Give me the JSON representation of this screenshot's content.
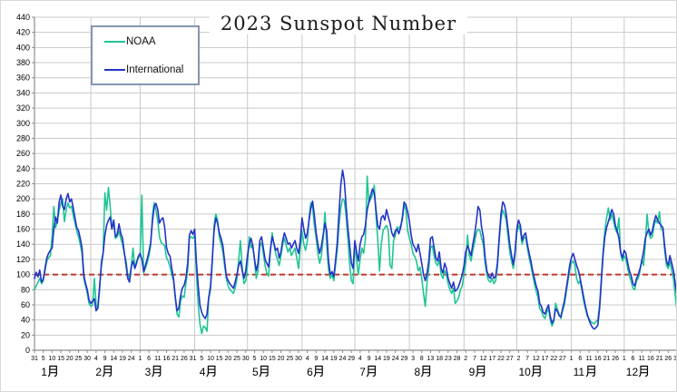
{
  "chart": {
    "title": "2023 Sunspot Number",
    "colors": {
      "noaa": "#1fc595",
      "international": "#2433c9",
      "reference": "#c0392b",
      "gridline": "#c9c9c9",
      "axis": "#8c8c8c",
      "label_text": "#000000",
      "legend_border": "#8496b0"
    }
  },
  "chart_data": {
    "type": "line",
    "title": "2023 Sunspot Number",
    "xlabel": "",
    "ylabel": "",
    "ylim": [
      0,
      440
    ],
    "y_tick_step": 20,
    "y_ticks": [
      0,
      20,
      40,
      60,
      80,
      100,
      120,
      140,
      160,
      180,
      200,
      220,
      240,
      260,
      280,
      300,
      320,
      340,
      360,
      380,
      400,
      420,
      440
    ],
    "grid": "on",
    "legend_position": "top-left box",
    "reference_line": {
      "value": 100,
      "style": "dashed",
      "color": "#c0392b"
    },
    "x_tick_step_days": 5,
    "x_tick_labels": [
      "31",
      "5",
      "10",
      "15",
      "20",
      "25",
      "30",
      "4",
      "9",
      "14",
      "19",
      "24",
      "1",
      "6",
      "11",
      "16",
      "21",
      "26",
      "31",
      "5",
      "10",
      "15",
      "20",
      "25",
      "30",
      "5",
      "10",
      "15",
      "20",
      "25",
      "30",
      "4",
      "9",
      "14",
      "19",
      "24",
      "29",
      "4",
      "9",
      "14",
      "19",
      "24",
      "29",
      "3",
      "8",
      "13",
      "18",
      "23",
      "28",
      "2",
      "7",
      "12",
      "17",
      "22",
      "27",
      "2",
      "7",
      "12",
      "17",
      "22",
      "27",
      "1",
      "6",
      "11",
      "16",
      "21",
      "26",
      "1",
      "6",
      "11",
      "16",
      "21",
      "26",
      "31"
    ],
    "month_labels": [
      "1月",
      "2月",
      "3月",
      "4月",
      "5月",
      "6月",
      "7月",
      "8月",
      "9月",
      "10月",
      "11月",
      "12月"
    ],
    "month_label_days": [
      8,
      39,
      67,
      98,
      128,
      159,
      189,
      220,
      251,
      281,
      312,
      342
    ],
    "month_gridline_days": [
      32,
      60,
      91,
      121,
      152,
      182,
      213,
      244,
      274,
      305,
      335,
      365
    ],
    "x_axis_note": "daily values, day 0 = Dec 31 through day 365 = Dec 31",
    "series": [
      {
        "name": "NOAA",
        "color": "#1fc595",
        "values": [
          80,
          85,
          90,
          95,
          88,
          92,
          105,
          118,
          122,
          125,
          150,
          190,
          162,
          172,
          185,
          195,
          200,
          170,
          185,
          195,
          188,
          190,
          178,
          168,
          158,
          150,
          140,
          128,
          95,
          85,
          75,
          62,
          58,
          60,
          95,
          60,
          55,
          80,
          118,
          128,
          208,
          185,
          215,
          190,
          162,
          168,
          148,
          150,
          158,
          148,
          140,
          128,
          118,
          100,
          95,
          112,
          135,
          108,
          118,
          122,
          125,
          205,
          102,
          108,
          115,
          125,
          138,
          178,
          195,
          185,
          172,
          150,
          142,
          140,
          138,
          122,
          118,
          110,
          100,
          92,
          68,
          48,
          44,
          65,
          72,
          70,
          88,
          105,
          148,
          150,
          148,
          152,
          100,
          62,
          35,
          22,
          32,
          30,
          25,
          68,
          80,
          115,
          165,
          180,
          172,
          150,
          140,
          130,
          112,
          95,
          85,
          80,
          78,
          75,
          82,
          95,
          120,
          145,
          110,
          88,
          92,
          112,
          150,
          135,
          140,
          118,
          95,
          105,
          138,
          142,
          128,
          112,
          102,
          98,
          130,
          155,
          140,
          128,
          120,
          112,
          125,
          140,
          148,
          138,
          130,
          135,
          125,
          130,
          135,
          122,
          108,
          135,
          158,
          140,
          132,
          145,
          175,
          195,
          188,
          165,
          148,
          128,
          115,
          125,
          148,
          182,
          140,
          108,
          95,
          100,
          92,
          112,
          132,
          165,
          188,
          200,
          198,
          178,
          148,
          115,
          92,
          88,
          142,
          118,
          100,
          120,
          135,
          128,
          148,
          230,
          195,
          200,
          205,
          218,
          178,
          148,
          105,
          140,
          158,
          162,
          165,
          158,
          112,
          108,
          145,
          152,
          163,
          160,
          165,
          172,
          193,
          185,
          158,
          148,
          140,
          128,
          124,
          118,
          105,
          110,
          95,
          75,
          58,
          90,
          108,
          135,
          138,
          125,
          115,
          112,
          120,
          100,
          95,
          105,
          100,
          88,
          80,
          75,
          82,
          62,
          65,
          70,
          80,
          85,
          100,
          115,
          152,
          125,
          118,
          132,
          142,
          155,
          160,
          158,
          148,
          140,
          115,
          100,
          92,
          90,
          95,
          88,
          92,
          110,
          145,
          172,
          185,
          180,
          172,
          150,
          130,
          118,
          108,
          125,
          155,
          165,
          158,
          140,
          148,
          150,
          135,
          122,
          112,
          100,
          88,
          78,
          70,
          55,
          52,
          45,
          42,
          50,
          55,
          40,
          32,
          38,
          62,
          55,
          48,
          42,
          52,
          60,
          75,
          90,
          105,
          115,
          118,
          112,
          95,
          88,
          92,
          78,
          65,
          55,
          45,
          42,
          38,
          36,
          35,
          38,
          40,
          60,
          95,
          130,
          158,
          175,
          188,
          172,
          180,
          170,
          160,
          155,
          175,
          128,
          118,
          125,
          120,
          108,
          98,
          90,
          82,
          80,
          92,
          95,
          105,
          120,
          112,
          140,
          180,
          155,
          148,
          150,
          165,
          172,
          168,
          183,
          160,
          158,
          132,
          112,
          108,
          118,
          105,
          95,
          72,
          52
        ]
      },
      {
        "name": "International",
        "color": "#2433c9",
        "values": [
          95,
          103,
          97,
          106,
          90,
          94,
          108,
          122,
          128,
          132,
          135,
          160,
          176,
          168,
          196,
          205,
          190,
          186,
          200,
          207,
          196,
          200,
          188,
          175,
          162,
          158,
          148,
          135,
          100,
          88,
          80,
          66,
          62,
          65,
          68,
          52,
          56,
          85,
          112,
          128,
          152,
          165,
          172,
          176,
          160,
          172,
          150,
          153,
          167,
          155,
          148,
          130,
          112,
          95,
          90,
          110,
          118,
          108,
          115,
          124,
          128,
          120,
          104,
          112,
          120,
          130,
          142,
          170,
          190,
          194,
          186,
          168,
          173,
          175,
          162,
          136,
          128,
          124,
          108,
          95,
          70,
          52,
          56,
          72,
          82,
          86,
          95,
          115,
          152,
          158,
          153,
          160,
          115,
          85,
          60,
          50,
          45,
          42,
          48,
          70,
          85,
          120,
          158,
          175,
          168,
          155,
          148,
          138,
          118,
          98,
          92,
          88,
          85,
          82,
          90,
          100,
          112,
          118,
          105,
          95,
          105,
          125,
          140,
          148,
          138,
          120,
          105,
          115,
          145,
          150,
          135,
          120,
          115,
          110,
          132,
          150,
          142,
          132,
          135,
          122,
          130,
          145,
          155,
          148,
          140,
          142,
          135,
          140,
          145,
          135,
          128,
          145,
          175,
          160,
          148,
          155,
          172,
          188,
          197,
          178,
          155,
          140,
          128,
          138,
          152,
          168,
          158,
          120,
          100,
          104,
          97,
          118,
          142,
          182,
          218,
          238,
          224,
          192,
          162,
          140,
          115,
          108,
          145,
          130,
          118,
          140,
          150,
          153,
          165,
          185,
          196,
          205,
          213,
          208,
          186,
          165,
          160,
          175,
          178,
          172,
          186,
          176,
          168,
          155,
          150,
          158,
          160,
          154,
          162,
          176,
          196,
          192,
          183,
          170,
          152,
          140,
          136,
          130,
          140,
          128,
          115,
          100,
          92,
          102,
          118,
          148,
          150,
          136,
          122,
          118,
          130,
          108,
          102,
          115,
          108,
          95,
          88,
          82,
          90,
          78,
          80,
          85,
          92,
          100,
          112,
          130,
          138,
          132,
          125,
          140,
          152,
          170,
          190,
          185,
          162,
          150,
          122,
          105,
          98,
          95,
          102,
          95,
          98,
          115,
          150,
          180,
          196,
          192,
          180,
          160,
          140,
          125,
          113,
          130,
          160,
          172,
          165,
          145,
          152,
          155,
          140,
          128,
          118,
          105,
          95,
          85,
          78,
          62,
          58,
          50,
          48,
          55,
          60,
          45,
          36,
          40,
          55,
          52,
          46,
          44,
          55,
          65,
          80,
          95,
          112,
          122,
          128,
          120,
          112,
          105,
          95,
          82,
          70,
          58,
          48,
          40,
          34,
          30,
          28,
          30,
          33,
          55,
          90,
          125,
          150,
          162,
          170,
          178,
          186,
          180,
          165,
          158,
          148,
          130,
          122,
          132,
          128,
          115,
          105,
          98,
          88,
          85,
          95,
          100,
          108,
          118,
          130,
          148,
          155,
          160,
          152,
          158,
          170,
          178,
          172,
          168,
          165,
          162,
          138,
          118,
          112,
          125,
          115,
          105,
          88,
          72
        ]
      }
    ]
  }
}
